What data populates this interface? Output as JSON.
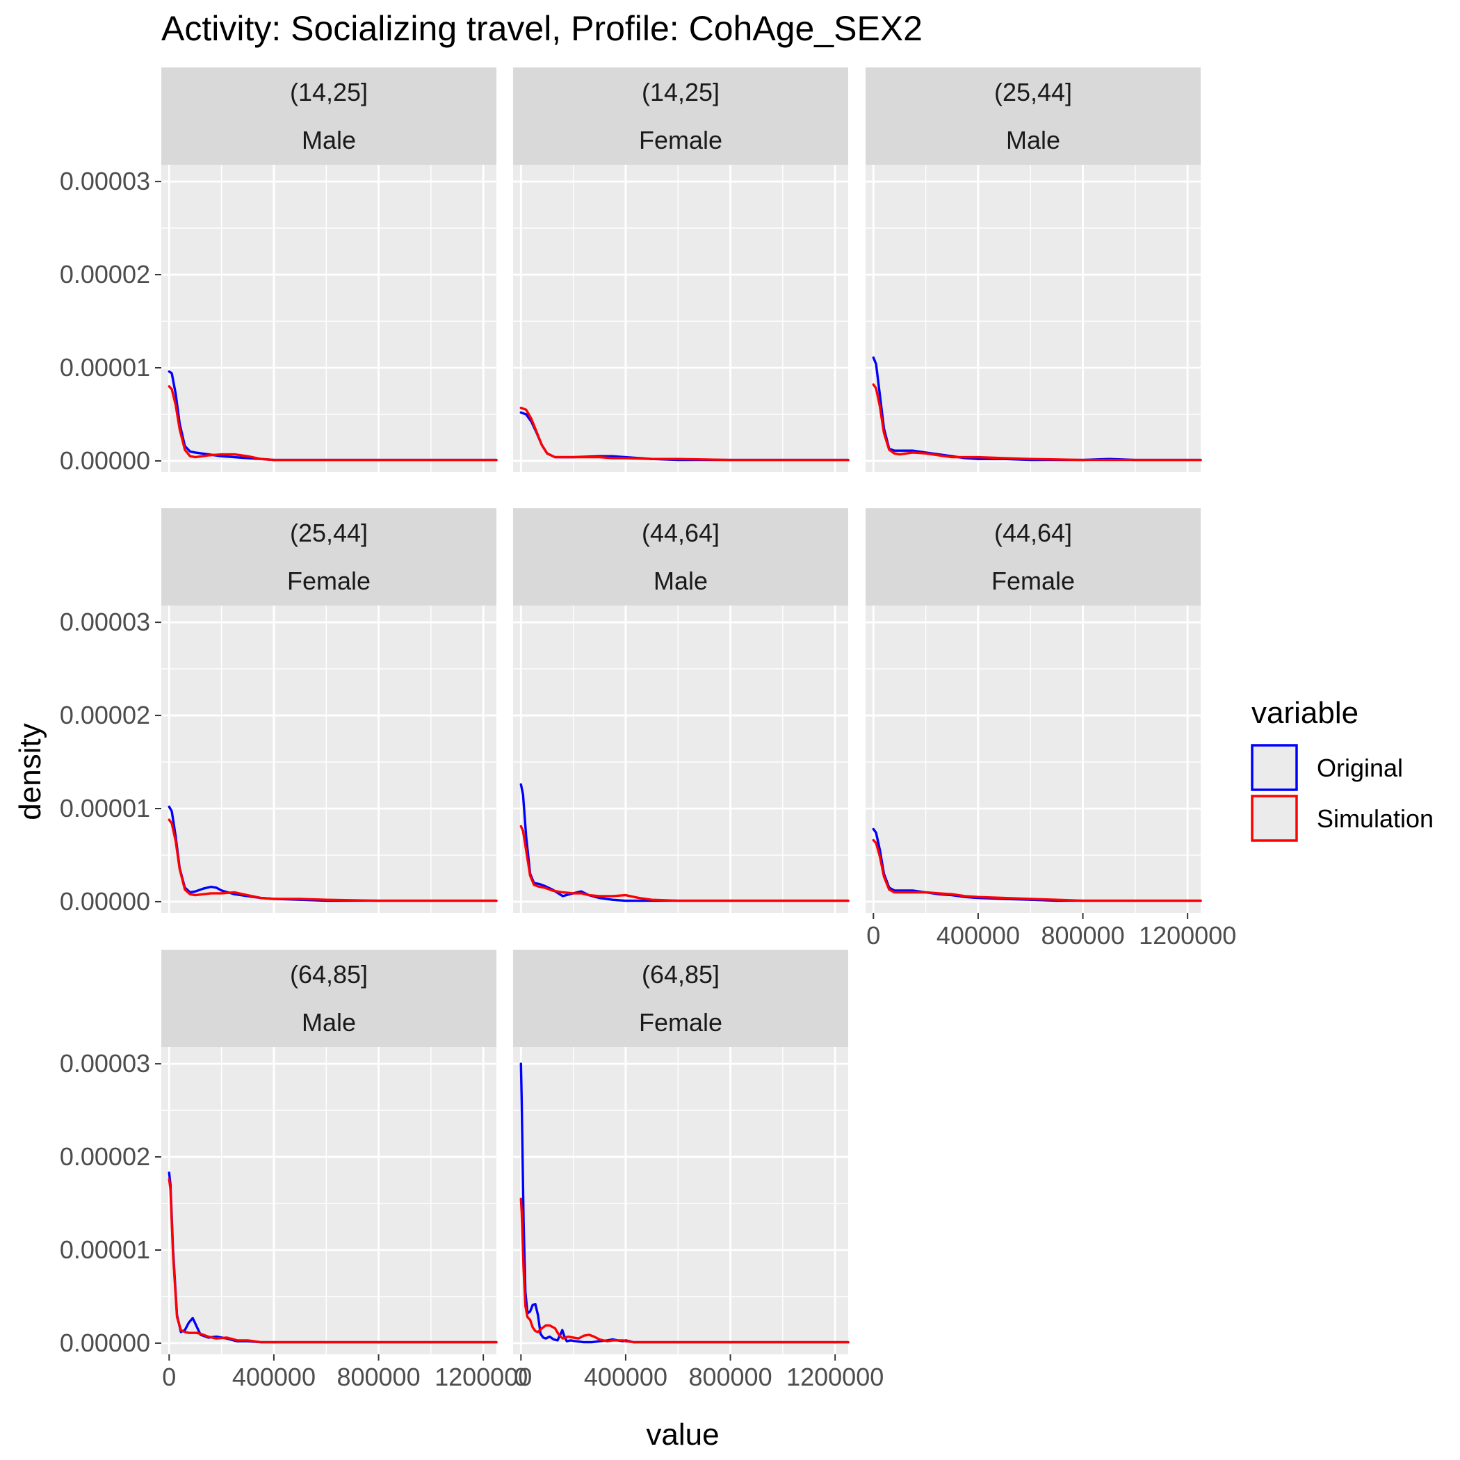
{
  "chart_data": {
    "type": "line",
    "title": "Activity: Socializing travel, Profile: CohAge_SEX2",
    "xlabel": "value",
    "ylabel": "density",
    "xlim": [
      -30000,
      1250000
    ],
    "ylim": [
      -1.2e-06,
      3.18e-05
    ],
    "x_ticks": [
      0,
      400000,
      800000,
      1200000
    ],
    "x_tick_labels": [
      "0",
      "400000",
      "800000",
      "1200000"
    ],
    "y_ticks": [
      0,
      1e-05,
      2e-05,
      3e-05
    ],
    "y_tick_labels": [
      "0.00000",
      "0.00001",
      "0.00002",
      "0.00003"
    ],
    "grid": true,
    "legend": {
      "title": "variable",
      "position": "right",
      "entries": [
        {
          "name": "Original",
          "color": "#0000ff"
        },
        {
          "name": "Simulation",
          "color": "#ff0000"
        }
      ]
    },
    "series_colors": {
      "Original": "#0000ff",
      "Simulation": "#ff0000"
    },
    "panels": [
      {
        "strip1": "(14,25]",
        "strip2": "Male",
        "series": [
          {
            "name": "Original",
            "x": [
              0,
              10000,
              25000,
              40000,
              60000,
              80000,
              100000,
              150000,
              200000,
              250000,
              300000,
              350000,
              400000,
              500000,
              600000,
              700000,
              800000,
              1000000,
              1250000
            ],
            "y": [
              9.6e-06,
              9.4e-06,
              7.2e-06,
              4e-06,
              1.6e-06,
              1e-06,
              9e-07,
              7e-07,
              5e-07,
              4e-07,
              3e-07,
              2e-07,
              1e-07,
              1e-07,
              1e-07,
              1e-07,
              1e-07,
              1e-07,
              1e-07
            ]
          },
          {
            "name": "Simulation",
            "x": [
              0,
              10000,
              25000,
              40000,
              60000,
              80000,
              100000,
              150000,
              200000,
              250000,
              300000,
              350000,
              400000,
              500000,
              600000,
              700000,
              800000,
              1000000,
              1250000
            ],
            "y": [
              8e-06,
              7.7e-06,
              6e-06,
              3.4e-06,
              1.2e-06,
              5e-07,
              4e-07,
              6e-07,
              7e-07,
              7e-07,
              5e-07,
              2e-07,
              1e-07,
              1e-07,
              1e-07,
              1e-07,
              1e-07,
              1e-07,
              1e-07
            ]
          }
        ]
      },
      {
        "strip1": "(14,25]",
        "strip2": "Female",
        "series": [
          {
            "name": "Original",
            "x": [
              0,
              20000,
              40000,
              60000,
              80000,
              100000,
              130000,
              160000,
              200000,
              300000,
              350000,
              400000,
              500000,
              600000,
              800000,
              1000000,
              1250000
            ],
            "y": [
              5.2e-06,
              5e-06,
              4.2e-06,
              3e-06,
              1.7e-06,
              8e-07,
              4e-07,
              4e-07,
              4e-07,
              5e-07,
              5e-07,
              4e-07,
              2e-07,
              1e-07,
              1e-07,
              1e-07,
              1e-07
            ]
          },
          {
            "name": "Simulation",
            "x": [
              0,
              20000,
              40000,
              60000,
              80000,
              100000,
              130000,
              160000,
              200000,
              300000,
              350000,
              400000,
              500000,
              600000,
              800000,
              1000000,
              1250000
            ],
            "y": [
              5.7e-06,
              5.5e-06,
              4.5e-06,
              3.1e-06,
              1.7e-06,
              8e-07,
              4e-07,
              4e-07,
              4e-07,
              4e-07,
              3e-07,
              3e-07,
              2e-07,
              2e-07,
              1e-07,
              1e-07,
              1e-07
            ]
          }
        ]
      },
      {
        "strip1": "(25,44]",
        "strip2": "Male",
        "series": [
          {
            "name": "Original",
            "x": [
              0,
              10000,
              25000,
              40000,
              60000,
              80000,
              100000,
              150000,
              200000,
              250000,
              300000,
              350000,
              400000,
              500000,
              600000,
              800000,
              900000,
              1000000,
              1250000
            ],
            "y": [
              1.11e-05,
              1.04e-05,
              7e-06,
              3.5e-06,
              1.3e-06,
              1.1e-06,
              1.1e-06,
              1.1e-06,
              9e-07,
              7e-07,
              5e-07,
              3e-07,
              2e-07,
              2e-07,
              1e-07,
              1e-07,
              2e-07,
              1e-07,
              1e-07
            ]
          },
          {
            "name": "Simulation",
            "x": [
              0,
              10000,
              25000,
              40000,
              60000,
              80000,
              100000,
              150000,
              200000,
              250000,
              300000,
              350000,
              400000,
              500000,
              600000,
              800000,
              900000,
              1000000,
              1250000
            ],
            "y": [
              8.2e-06,
              7.8e-06,
              5.8e-06,
              3e-06,
              1.2e-06,
              8e-07,
              7e-07,
              9e-07,
              8e-07,
              6e-07,
              4e-07,
              4e-07,
              4e-07,
              3e-07,
              2e-07,
              1e-07,
              1e-07,
              1e-07,
              1e-07
            ]
          }
        ]
      },
      {
        "strip1": "(25,44]",
        "strip2": "Female",
        "series": [
          {
            "name": "Original",
            "x": [
              0,
              10000,
              25000,
              40000,
              60000,
              80000,
              100000,
              130000,
              160000,
              180000,
              200000,
              250000,
              300000,
              350000,
              400000,
              500000,
              600000,
              800000,
              1000000,
              1250000
            ],
            "y": [
              1.02e-05,
              9.7e-06,
              7e-06,
              3.6e-06,
              1.5e-06,
              1e-06,
              1.1e-06,
              1.4e-06,
              1.6e-06,
              1.5e-06,
              1.2e-06,
              8e-07,
              6e-07,
              4e-07,
              3e-07,
              2e-07,
              1e-07,
              1e-07,
              1e-07,
              1e-07
            ]
          },
          {
            "name": "Simulation",
            "x": [
              0,
              10000,
              25000,
              40000,
              60000,
              80000,
              100000,
              130000,
              160000,
              180000,
              200000,
              250000,
              300000,
              350000,
              400000,
              500000,
              600000,
              800000,
              1000000,
              1250000
            ],
            "y": [
              8.8e-06,
              8.4e-06,
              6.5e-06,
              3.5e-06,
              1.3e-06,
              8e-07,
              7e-07,
              8e-07,
              9e-07,
              9e-07,
              9e-07,
              1e-06,
              7e-07,
              4e-07,
              3e-07,
              3e-07,
              2e-07,
              1e-07,
              1e-07,
              1e-07
            ]
          }
        ]
      },
      {
        "strip1": "(44,64]",
        "strip2": "Male",
        "series": [
          {
            "name": "Original",
            "x": [
              0,
              8000,
              20000,
              35000,
              50000,
              70000,
              90000,
              120000,
              160000,
              200000,
              230000,
              260000,
              300000,
              350000,
              400000,
              450000,
              500000,
              600000,
              800000,
              1000000,
              1250000
            ],
            "y": [
              1.26e-05,
              1.15e-05,
              7e-06,
              3e-06,
              2e-06,
              1.9e-06,
              1.7e-06,
              1.3e-06,
              6e-07,
              9e-07,
              1.1e-06,
              7e-07,
              4e-07,
              2e-07,
              1e-07,
              1e-07,
              1e-07,
              1e-07,
              1e-07,
              1e-07,
              1e-07
            ]
          },
          {
            "name": "Simulation",
            "x": [
              0,
              8000,
              20000,
              35000,
              50000,
              70000,
              90000,
              120000,
              160000,
              200000,
              230000,
              260000,
              300000,
              350000,
              400000,
              450000,
              500000,
              600000,
              800000,
              1000000,
              1250000
            ],
            "y": [
              8.1e-06,
              7.6e-06,
              5.5e-06,
              2.8e-06,
              1.8e-06,
              1.6e-06,
              1.5e-06,
              1.2e-06,
              1e-06,
              9e-07,
              9e-07,
              7e-07,
              6e-07,
              6e-07,
              7e-07,
              4e-07,
              2e-07,
              1e-07,
              1e-07,
              1e-07,
              1e-07
            ]
          }
        ]
      },
      {
        "strip1": "(44,64]",
        "strip2": "Female",
        "series": [
          {
            "name": "Original",
            "x": [
              0,
              10000,
              25000,
              40000,
              60000,
              80000,
              100000,
              150000,
              200000,
              250000,
              300000,
              350000,
              400000,
              500000,
              600000,
              700000,
              800000,
              1000000,
              1250000
            ],
            "y": [
              7.8e-06,
              7.4e-06,
              5.5e-06,
              3e-06,
              1.5e-06,
              1.2e-06,
              1.2e-06,
              1.2e-06,
              1e-06,
              8e-07,
              7e-07,
              5e-07,
              4e-07,
              3e-07,
              2e-07,
              1e-07,
              1e-07,
              1e-07,
              1e-07
            ]
          },
          {
            "name": "Simulation",
            "x": [
              0,
              10000,
              25000,
              40000,
              60000,
              80000,
              100000,
              150000,
              200000,
              250000,
              300000,
              350000,
              400000,
              500000,
              600000,
              700000,
              800000,
              1000000,
              1250000
            ],
            "y": [
              6.6e-06,
              6.3e-06,
              4.8e-06,
              2.7e-06,
              1.3e-06,
              1e-06,
              1e-06,
              1e-06,
              1e-06,
              9e-07,
              8e-07,
              6e-07,
              5e-07,
              4e-07,
              3e-07,
              2e-07,
              1e-07,
              1e-07,
              1e-07
            ]
          }
        ]
      },
      {
        "strip1": "(64,85]",
        "strip2": "Male",
        "series": [
          {
            "name": "Original",
            "x": [
              0,
              5000,
              15000,
              30000,
              45000,
              60000,
              75000,
              90000,
              105000,
              120000,
              150000,
              180000,
              220000,
              260000,
              300000,
              350000,
              400000,
              600000,
              800000,
              1000000,
              1250000
            ],
            "y": [
              1.83e-05,
              1.7e-05,
              1e-05,
              3e-06,
              1.2e-06,
              1.4e-06,
              2.2e-06,
              2.7e-06,
              1.8e-06,
              9e-07,
              6e-07,
              7e-07,
              5e-07,
              2e-07,
              2e-07,
              1e-07,
              1e-07,
              1e-07,
              1e-07,
              1e-07,
              1e-07
            ]
          },
          {
            "name": "Simulation",
            "x": [
              0,
              5000,
              15000,
              30000,
              45000,
              60000,
              75000,
              90000,
              105000,
              120000,
              150000,
              180000,
              220000,
              260000,
              300000,
              350000,
              400000,
              600000,
              800000,
              1000000,
              1250000
            ],
            "y": [
              1.76e-05,
              1.65e-05,
              9.5e-06,
              2.8e-06,
              1.4e-06,
              1.2e-06,
              1.1e-06,
              1.1e-06,
              1.1e-06,
              1e-06,
              7e-07,
              5e-07,
              6e-07,
              3e-07,
              3e-07,
              1e-07,
              1e-07,
              1e-07,
              1e-07,
              1e-07,
              1e-07
            ]
          }
        ]
      },
      {
        "strip1": "(64,85]",
        "strip2": "Female",
        "series": [
          {
            "name": "Original",
            "x": [
              0,
              3000,
              10000,
              17000,
              25000,
              35000,
              45000,
              55000,
              65000,
              75000,
              85000,
              95000,
              110000,
              125000,
              140000,
              150000,
              158000,
              165000,
              175000,
              190000,
              210000,
              240000,
              270000,
              300000,
              330000,
              350000,
              370000,
              390000,
              400000,
              430000,
              500000,
              700000,
              1000000,
              1250000
            ],
            "y": [
              3e-05,
              2.6e-05,
              1.3e-05,
              5.5e-06,
              3.2e-06,
              3.4e-06,
              4.1e-06,
              4.2e-06,
              3e-06,
              1e-06,
              6e-07,
              5e-07,
              7e-07,
              4e-07,
              3e-07,
              9e-07,
              1.4e-06,
              8e-07,
              2e-07,
              3e-07,
              2e-07,
              1e-07,
              1e-07,
              2e-07,
              3e-07,
              4e-07,
              3e-07,
              2e-07,
              3e-07,
              1e-07,
              1e-07,
              1e-07,
              1e-07,
              1e-07
            ]
          },
          {
            "name": "Simulation",
            "x": [
              0,
              3000,
              10000,
              17000,
              25000,
              35000,
              45000,
              55000,
              65000,
              80000,
              95000,
              110000,
              130000,
              145000,
              160000,
              180000,
              200000,
              220000,
              240000,
              260000,
              280000,
              300000,
              330000,
              350000,
              370000,
              390000,
              400000,
              430000,
              500000,
              700000,
              1000000,
              1250000
            ],
            "y": [
              1.55e-05,
              1.4e-05,
              8e-06,
              4e-06,
              2.8e-06,
              2.5e-06,
              1.7e-06,
              1.3e-06,
              1.2e-06,
              1.6e-06,
              1.9e-06,
              1.9e-06,
              1.6e-06,
              9e-07,
              5e-07,
              7e-07,
              6e-07,
              5e-07,
              8e-07,
              9e-07,
              7e-07,
              4e-07,
              2e-07,
              3e-07,
              3e-07,
              3e-07,
              2e-07,
              1e-07,
              1e-07,
              1e-07,
              1e-07,
              1e-07
            ]
          }
        ]
      }
    ]
  }
}
